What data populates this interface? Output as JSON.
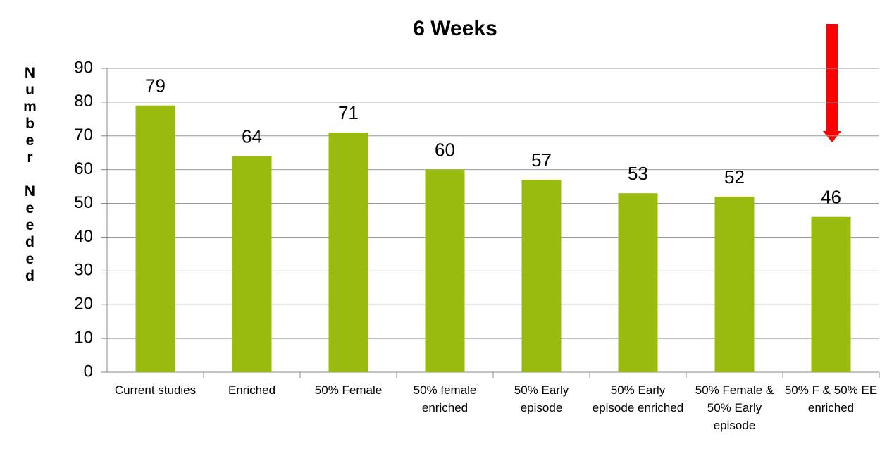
{
  "chart_data": {
    "type": "bar",
    "title": "6 Weeks",
    "ylabel": "Number Needed",
    "categories": [
      "Current studies",
      "Enriched",
      "50% Female",
      "50% female enriched",
      "50% Early episode",
      "50% Early episode enriched",
      "50% Female & 50% Early episode",
      "50% F & 50% EE enriched"
    ],
    "values": [
      79,
      64,
      71,
      60,
      57,
      53,
      52,
      46
    ],
    "color": "#99bb0f",
    "ylim": [
      0,
      90
    ],
    "yticks": [
      0,
      10,
      20,
      30,
      40,
      50,
      60,
      70,
      80,
      90
    ],
    "grid": true
  }
}
